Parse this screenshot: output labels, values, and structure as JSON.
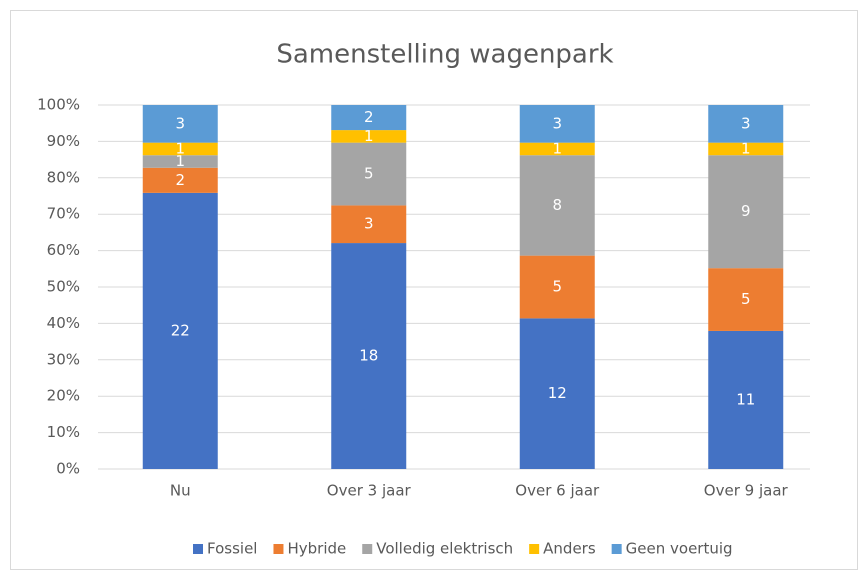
{
  "chart_data": {
    "type": "bar",
    "stacked": "percent",
    "title": "Samenstelling wagenpark",
    "categories": [
      "Nu",
      "Over 3 jaar",
      "Over 6 jaar",
      "Over 9 jaar"
    ],
    "series": [
      {
        "name": "Fossiel",
        "color": "#4472c4",
        "values": [
          22,
          18,
          12,
          11
        ]
      },
      {
        "name": "Hybride",
        "color": "#ed7d31",
        "values": [
          2,
          3,
          5,
          5
        ]
      },
      {
        "name": "Volledig elektrisch",
        "color": "#a5a5a5",
        "values": [
          1,
          5,
          8,
          9
        ]
      },
      {
        "name": "Anders",
        "color": "#ffc000",
        "values": [
          1,
          1,
          1,
          1
        ]
      },
      {
        "name": "Geen voertuig",
        "color": "#5b9bd5",
        "values": [
          3,
          2,
          3,
          3
        ]
      }
    ],
    "ylim": [
      0,
      100
    ],
    "yticks": [
      {
        "value": 0,
        "label": "0%"
      },
      {
        "value": 10,
        "label": "10%"
      },
      {
        "value": 20,
        "label": "20%"
      },
      {
        "value": 30,
        "label": "30%"
      },
      {
        "value": 40,
        "label": "40%"
      },
      {
        "value": 50,
        "label": "50%"
      },
      {
        "value": 60,
        "label": "60%"
      },
      {
        "value": 70,
        "label": "70%"
      },
      {
        "value": 80,
        "label": "80%"
      },
      {
        "value": 90,
        "label": "90%"
      },
      {
        "value": 100,
        "label": "100%"
      }
    ],
    "grid": true,
    "legend": "bottom"
  }
}
